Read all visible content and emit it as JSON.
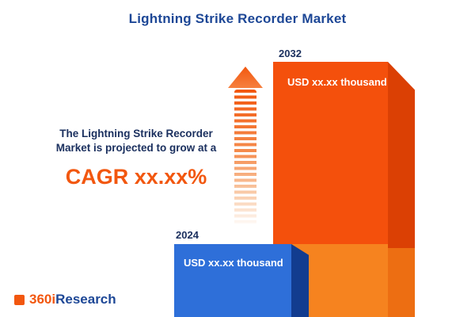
{
  "title": "Lightning Strike Recorder Market",
  "description": {
    "line1": "The Lightning Strike Recorder",
    "line2": "Market is projected to grow at a",
    "cagr": "CAGR xx.xx%"
  },
  "chart_data": {
    "type": "bar",
    "title": "Lightning Strike Recorder Market",
    "categories": [
      "2024",
      "2032"
    ],
    "values": [
      null,
      null
    ],
    "value_labels": [
      "USD xx.xx thousand",
      "USD xx.xx thousand"
    ],
    "unit": "USD thousand",
    "annotations": [
      "The Lightning Strike Recorder Market is projected to grow at a CAGR xx.xx%"
    ],
    "legend": false,
    "grid": false,
    "bar_colors": [
      "#2E6FD9",
      "#F4500C"
    ],
    "bar_side_colors": [
      "#123C8F",
      "#DB4004"
    ]
  },
  "colors": {
    "accent_orange": "#F2570F",
    "title_navy": "#1D4796",
    "text_navy": "#1A2F5E",
    "bar_blue": "#2E6FD9",
    "bar_blue_side": "#123C8F",
    "bar_orange": "#F4500C",
    "bar_orange_light": "#F6831F",
    "bar_orange_side": "#DB4004"
  },
  "logo": {
    "prefix": "360i",
    "suffix": "Research"
  }
}
